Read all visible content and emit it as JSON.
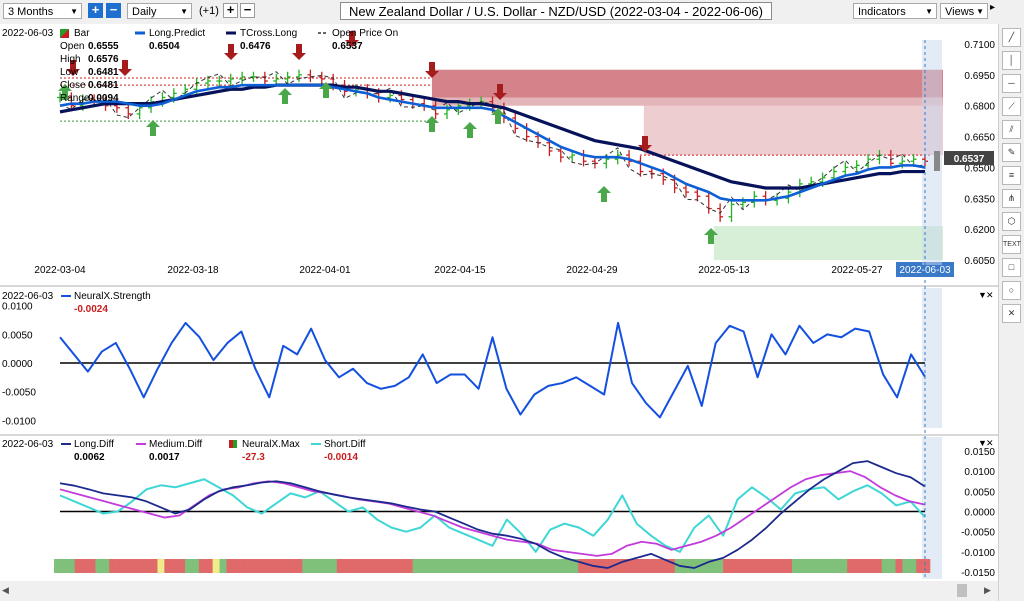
{
  "toolbar": {
    "period": "3 Months",
    "interval": "Daily",
    "offset": "(+1)",
    "title": "New Zealand Dollar / U.S. Dollar - NZD/USD (2022-03-04 - 2022-06-06)",
    "indicators": "Indicators",
    "views": "Views"
  },
  "colors": {
    "long_predict": "#0d5fd6",
    "tcross_long": "#06125a",
    "up_bar": "#22b422",
    "down_bar": "#c81e1e",
    "up_arrow": "#4aa84a",
    "down_arrow": "#a61c1c",
    "neural_strength": "#1450e0",
    "long_diff": "#1b2a8c",
    "medium_diff": "#c23bdc",
    "short_diff": "#3fd6d6",
    "zone_red": "#c45a62",
    "zone_green": "#b6e0b6",
    "neural_max_green": "#7fc07a",
    "neural_max_red": "#e06a6a",
    "neural_max_yellow": "#f0ec8c",
    "cursor_tag": "#3a78c8"
  },
  "price_panel": {
    "date": "2022-06-03",
    "legend": [
      {
        "name": "Bar",
        "value": "",
        "icon": "bar-icon"
      },
      {
        "name": "Long.Predict",
        "value": "0.6504",
        "icon": "line-icon"
      },
      {
        "name": "TCross.Long",
        "value": "0.6476",
        "icon": "line-icon"
      },
      {
        "name": "Open Price On",
        "value": "0.6537",
        "icon": "dashed-line-icon"
      }
    ],
    "ohlc": [
      {
        "label": "Open",
        "value": "0.6555"
      },
      {
        "label": "High",
        "value": "0.6576"
      },
      {
        "label": "Low",
        "value": "0.6481"
      },
      {
        "label": "Close",
        "value": "0.6481"
      },
      {
        "label": "Range",
        "value": "0.0094"
      }
    ],
    "current_price": "0.6537"
  },
  "strength_panel": {
    "date": "2022-06-03",
    "name": "NeuralX.Strength",
    "value": "-0.0024"
  },
  "diff_panel": {
    "date": "2022-06-03",
    "legend": [
      {
        "name": "Long.Diff",
        "value": "0.0062"
      },
      {
        "name": "Medium.Diff",
        "value": "0.0017"
      },
      {
        "name": "NeuralX.Max",
        "value": "-27.3"
      },
      {
        "name": "Short.Diff",
        "value": "-0.0014"
      }
    ]
  },
  "chart_data": [
    {
      "type": "line",
      "x_ticks": [
        "2022-03-04",
        "2022-03-18",
        "2022-04-01",
        "2022-04-15",
        "2022-04-29",
        "2022-05-13",
        "2022-05-27",
        "2022-06-03"
      ],
      "y_ticks": [
        "0.7100",
        "0.6950",
        "0.6800",
        "0.6650",
        "0.6500",
        "0.6350",
        "0.6200",
        "0.6050"
      ],
      "ylim": [
        0.605,
        0.71
      ],
      "close": [
        0.684,
        0.68,
        0.683,
        0.682,
        0.68,
        0.679,
        0.676,
        0.679,
        0.682,
        0.684,
        0.686,
        0.688,
        0.691,
        0.692,
        0.692,
        0.693,
        0.694,
        0.694,
        0.692,
        0.693,
        0.694,
        0.695,
        0.694,
        0.693,
        0.69,
        0.687,
        0.688,
        0.686,
        0.684,
        0.685,
        0.683,
        0.681,
        0.68,
        0.676,
        0.678,
        0.68,
        0.681,
        0.682,
        0.679,
        0.674,
        0.669,
        0.665,
        0.662,
        0.658,
        0.655,
        0.656,
        0.653,
        0.652,
        0.654,
        0.656,
        0.653,
        0.648,
        0.647,
        0.644,
        0.64,
        0.638,
        0.636,
        0.63,
        0.626,
        0.632,
        0.633,
        0.636,
        0.634,
        0.635,
        0.638,
        0.642,
        0.643,
        0.645,
        0.648,
        0.65,
        0.651,
        0.654,
        0.656,
        0.652,
        0.653,
        0.654,
        0.653
      ],
      "long_predict": [
        0.68,
        0.681,
        0.681,
        0.682,
        0.682,
        0.682,
        0.681,
        0.68,
        0.68,
        0.681,
        0.683,
        0.685,
        0.687,
        0.688,
        0.689,
        0.689,
        0.69,
        0.69,
        0.69,
        0.69,
        0.69,
        0.69,
        0.69,
        0.69,
        0.689,
        0.688,
        0.687,
        0.686,
        0.684,
        0.683,
        0.682,
        0.681,
        0.68,
        0.679,
        0.679,
        0.679,
        0.679,
        0.679,
        0.678,
        0.675,
        0.672,
        0.669,
        0.666,
        0.663,
        0.66,
        0.658,
        0.656,
        0.655,
        0.655,
        0.655,
        0.654,
        0.652,
        0.65,
        0.648,
        0.645,
        0.642,
        0.64,
        0.638,
        0.635,
        0.634,
        0.634,
        0.634,
        0.634,
        0.635,
        0.636,
        0.638,
        0.64,
        0.642,
        0.644,
        0.646,
        0.647,
        0.649,
        0.65,
        0.65,
        0.651,
        0.651,
        0.65
      ],
      "tcross_long": [
        0.677,
        0.678,
        0.679,
        0.68,
        0.681,
        0.681,
        0.681,
        0.681,
        0.681,
        0.682,
        0.683,
        0.684,
        0.685,
        0.686,
        0.687,
        0.688,
        0.688,
        0.689,
        0.689,
        0.69,
        0.69,
        0.69,
        0.69,
        0.69,
        0.69,
        0.689,
        0.689,
        0.688,
        0.687,
        0.687,
        0.686,
        0.685,
        0.684,
        0.683,
        0.682,
        0.682,
        0.681,
        0.681,
        0.68,
        0.679,
        0.677,
        0.675,
        0.673,
        0.671,
        0.669,
        0.667,
        0.665,
        0.663,
        0.662,
        0.661,
        0.66,
        0.659,
        0.657,
        0.655,
        0.653,
        0.651,
        0.649,
        0.647,
        0.645,
        0.643,
        0.642,
        0.641,
        0.64,
        0.64,
        0.64,
        0.64,
        0.641,
        0.642,
        0.643,
        0.644,
        0.645,
        0.646,
        0.647,
        0.647,
        0.648,
        0.648,
        0.648
      ],
      "sell_zone": {
        "top": 0.6975,
        "bottom": 0.656,
        "from": "2022-04-12"
      },
      "buy_zone": {
        "top": 0.6215,
        "bottom": 0.605,
        "from": "2022-05-12"
      }
    },
    {
      "type": "line",
      "name": "NeuralX.Strength",
      "y_ticks": [
        "0.0100",
        "0.0050",
        "0.0000",
        "-0.0050",
        "-0.0100"
      ],
      "ylim": [
        -0.011,
        0.011
      ],
      "values": [
        0.0045,
        0.0015,
        -0.0015,
        0.002,
        0.0035,
        -0.001,
        -0.006,
        -0.001,
        0.0035,
        0.007,
        0.0045,
        0.0005,
        0.0035,
        0.0055,
        -0.001,
        -0.006,
        0.003,
        0.0015,
        0.006,
        0.0005,
        -0.0025,
        -0.001,
        -0.0035,
        -0.0045,
        -0.004,
        -0.0025,
        0.0015,
        -0.0035,
        -0.002,
        -0.002,
        -0.0045,
        0.0045,
        -0.0045,
        -0.009,
        -0.0055,
        -0.004,
        -0.0035,
        -0.0025,
        -0.004,
        -0.0055,
        0.007,
        -0.0035,
        -0.007,
        -0.0095,
        -0.005,
        -0.0005,
        -0.0075,
        0.0035,
        0.0065,
        0.0055,
        -0.0025,
        0.005,
        0.0015,
        0.0065,
        0.0035,
        0.005,
        0.0045,
        0.006,
        0.0055,
        -0.002,
        -0.006,
        0.0015,
        -0.0024
      ]
    },
    {
      "type": "line",
      "y_ticks": [
        "0.0150",
        "0.0100",
        "0.0050",
        "0.0000",
        "-0.0050",
        "-0.0100",
        "-0.0150"
      ],
      "ylim": [
        -0.015,
        0.015
      ],
      "long_diff": [
        0.007,
        0.0064,
        0.0055,
        0.0045,
        0.004,
        0.0035,
        0.0025,
        0.001,
        -0.0005,
        0.0005,
        0.003,
        0.005,
        0.006,
        0.0065,
        0.0072,
        0.0075,
        0.007,
        0.006,
        0.005,
        0.0042,
        0.0035,
        0.003,
        0.0025,
        0.002,
        0.0012,
        0.0005,
        0.0,
        -0.0015,
        -0.003,
        -0.0045,
        -0.0055,
        -0.006,
        -0.0068,
        -0.008,
        -0.01,
        -0.0115,
        -0.0125,
        -0.0135,
        -0.014,
        -0.0125,
        -0.0115,
        -0.0105,
        -0.012,
        -0.0135,
        -0.014,
        -0.0125,
        -0.0115,
        -0.0095,
        -0.007,
        -0.004,
        -0.0005,
        0.0025,
        0.0055,
        0.008,
        0.01,
        0.012,
        0.0125,
        0.011,
        0.0095,
        0.0085,
        0.0062
      ],
      "medium_diff": [
        0.0055,
        0.0045,
        0.0035,
        0.0025,
        0.0015,
        0.0005,
        -0.0005,
        -0.0015,
        -0.001,
        0.0015,
        0.004,
        0.0055,
        0.006,
        0.007,
        0.0075,
        0.007,
        0.006,
        0.005,
        0.0045,
        0.0038,
        0.003,
        0.0025,
        0.002,
        0.001,
        0.0,
        -0.001,
        -0.0025,
        -0.004,
        -0.005,
        -0.006,
        -0.007,
        -0.0075,
        -0.008,
        -0.0095,
        -0.01,
        -0.0105,
        -0.011,
        -0.0105,
        -0.0085,
        -0.0075,
        -0.008,
        -0.0095,
        -0.0085,
        -0.0075,
        -0.006,
        -0.004,
        -0.0015,
        0.001,
        0.0035,
        0.006,
        0.008,
        0.009,
        0.0095,
        0.01,
        0.0085,
        0.006,
        0.004,
        0.0025,
        0.0017
      ],
      "short_diff": [
        0.004,
        0.0025,
        0.001,
        -0.0005,
        0.0,
        0.0025,
        0.0055,
        0.0065,
        0.006,
        0.007,
        0.008,
        0.006,
        0.004,
        0.001,
        -0.0005,
        0.002,
        0.0045,
        0.0035,
        0.005,
        0.0025,
        0.0,
        0.001,
        -0.002,
        -0.004,
        -0.005,
        -0.004,
        -0.001,
        -0.004,
        -0.0055,
        -0.007,
        -0.0085,
        -0.002,
        -0.0055,
        -0.01,
        -0.0045,
        -0.003,
        -0.004,
        -0.006,
        -0.002,
        0.004,
        -0.003,
        -0.006,
        -0.0085,
        -0.01,
        -0.004,
        -0.001,
        -0.006,
        0.003,
        0.006,
        0.0035,
        0.0005,
        0.0045,
        0.0055,
        0.006,
        0.003,
        0.005,
        0.0065,
        0.0045,
        0.0015,
        0.0025,
        -0.0014
      ],
      "neural_max": [
        "g",
        "g",
        "g",
        "r",
        "r",
        "r",
        "g",
        "g",
        "r",
        "r",
        "r",
        "r",
        "r",
        "r",
        "r",
        "y",
        "r",
        "r",
        "r",
        "g",
        "g",
        "r",
        "r",
        "y",
        "g",
        "r",
        "r",
        "r",
        "r",
        "r",
        "r",
        "r",
        "r",
        "r",
        "r",
        "r",
        "g",
        "g",
        "g",
        "g",
        "g",
        "r",
        "r",
        "r",
        "r",
        "r",
        "r",
        "r",
        "r",
        "r",
        "r",
        "r",
        "g",
        "g",
        "g",
        "g",
        "g",
        "g",
        "g",
        "g",
        "g",
        "g",
        "g",
        "g",
        "g",
        "g",
        "g",
        "g",
        "g",
        "g",
        "g",
        "g",
        "g",
        "g",
        "g",
        "g",
        "r",
        "r",
        "r",
        "r",
        "r",
        "r",
        "r",
        "r",
        "r",
        "r",
        "r",
        "r",
        "r",
        "r",
        "g",
        "g",
        "g",
        "g",
        "g",
        "g",
        "g",
        "r",
        "r",
        "r",
        "r",
        "r",
        "r",
        "r",
        "r",
        "r",
        "r",
        "g",
        "g",
        "g",
        "g",
        "g",
        "g",
        "g",
        "g",
        "r",
        "r",
        "r",
        "r",
        "r",
        "g",
        "g",
        "r",
        "g",
        "g",
        "r",
        "r"
      ]
    }
  ]
}
